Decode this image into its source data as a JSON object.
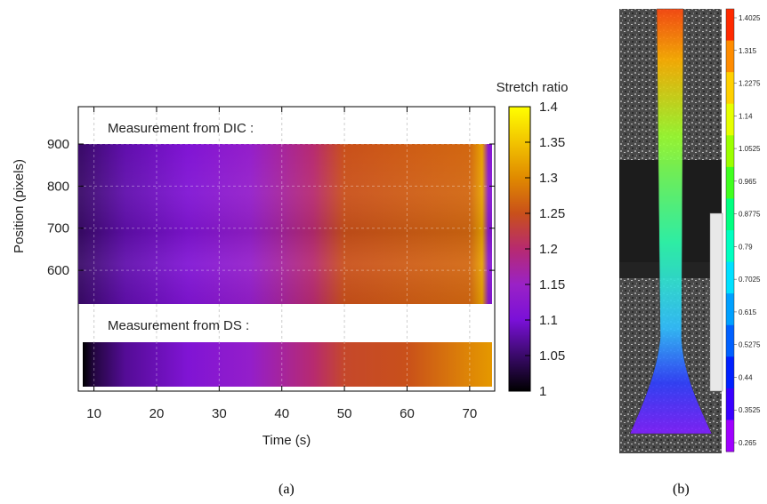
{
  "chart_data": [
    {
      "type": "heatmap",
      "panel_label": "(a)",
      "xlabel": "Time (s)",
      "ylabel": "Position (pixels)",
      "xlim": [
        7.5,
        74
      ],
      "ylim": [
        520,
        900
      ],
      "x_ticks": [
        10,
        20,
        30,
        40,
        50,
        60,
        70
      ],
      "y_ticks": [
        600,
        700,
        800,
        900
      ],
      "colorbar": {
        "label": "Stretch ratio",
        "range": [
          1,
          1.4
        ],
        "ticks": [
          "1",
          "1.05",
          "1.1",
          "1.15",
          "1.2",
          "1.25",
          "1.3",
          "1.35",
          "1.4"
        ],
        "colormap": [
          "#000000",
          "#3a0a6a",
          "#7a10d8",
          "#9a22c6",
          "#b72a70",
          "#c9501a",
          "#e08a00",
          "#f2c400",
          "#ffff00"
        ]
      },
      "sections": [
        {
          "name": "Measurement from DIC :",
          "profile_time": [
            8,
            15,
            25,
            35,
            45,
            50,
            60,
            70,
            72,
            73
          ],
          "profile_stretch": [
            1.05,
            1.08,
            1.11,
            1.14,
            1.2,
            1.25,
            1.26,
            1.27,
            1.32,
            1.12
          ]
        },
        {
          "name": "Measurement from DS :",
          "profile_time": [
            8,
            10,
            15,
            25,
            35,
            45,
            50,
            60,
            73
          ],
          "profile_stretch": [
            1.0,
            1.03,
            1.07,
            1.11,
            1.14,
            1.2,
            1.24,
            1.25,
            1.31
          ]
        }
      ]
    },
    {
      "type": "heatmap",
      "panel_label": "(b)",
      "colorbar": {
        "ticks": [
          "1.4025",
          "1.315",
          "1.2275",
          "1.14",
          "1.0525",
          "0.965",
          "0.8775",
          "0.79",
          "0.7025",
          "0.615",
          "0.5275",
          "0.44",
          "0.3525",
          "0.265"
        ],
        "colors": [
          "#ff2a00",
          "#ff8c00",
          "#ffd000",
          "#e6ff00",
          "#9cff00",
          "#40ff20",
          "#00ff80",
          "#00ffc0",
          "#00e0ff",
          "#00a0ff",
          "#0060ff",
          "#0020ff",
          "#3a00ff",
          "#a000ff"
        ]
      }
    }
  ]
}
